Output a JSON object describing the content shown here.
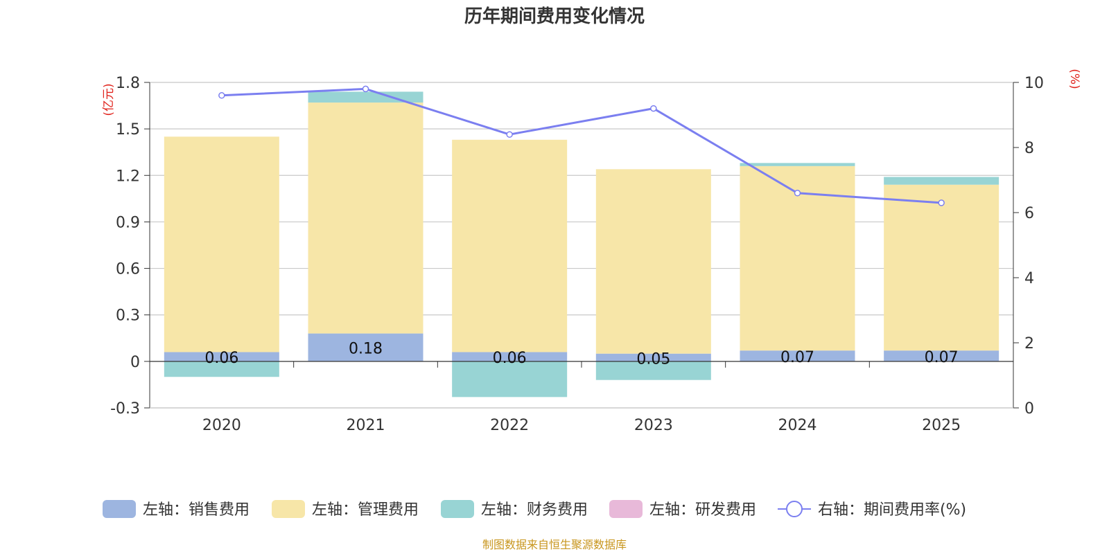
{
  "chart_data": {
    "type": "bar",
    "stacked": true,
    "title": "历年期间费用变化情况",
    "categories": [
      "2020",
      "2021",
      "2022",
      "2023",
      "2024",
      "2025"
    ],
    "left_axis": {
      "unit_label": "(亿元)",
      "ylim": [
        -0.3,
        1.8
      ],
      "ticks": [
        1.8,
        1.5,
        1.2,
        0.9,
        0.6,
        0.3,
        0,
        -0.3
      ],
      "tick_labels": [
        "1.8",
        "1.5",
        "1.2",
        "0.9",
        "0.6",
        "0.3",
        "0",
        "-0.3"
      ]
    },
    "right_axis": {
      "unit_label": "(%)",
      "ylim": [
        0,
        10
      ],
      "ticks": [
        10,
        8,
        6,
        4,
        2,
        0
      ],
      "tick_labels": [
        "10",
        "8",
        "6",
        "4",
        "2",
        "0"
      ]
    },
    "series": [
      {
        "name": "左轴：销售费用",
        "axis": "left",
        "kind": "bar",
        "color": "#9db5e0",
        "values": [
          0.06,
          0.18,
          0.06,
          0.05,
          0.07,
          0.07
        ],
        "labels": [
          "0.06",
          "0.18",
          "0.06",
          "0.05",
          "0.07",
          "0.07"
        ]
      },
      {
        "name": "左轴：管理费用",
        "axis": "left",
        "kind": "bar",
        "color": "#f7e6a8",
        "values": [
          1.39,
          1.49,
          1.37,
          1.19,
          1.19,
          1.07
        ]
      },
      {
        "name": "左轴：财务费用",
        "axis": "left",
        "kind": "bar",
        "color": "#98d4d4",
        "values": [
          -0.1,
          0.07,
          -0.23,
          -0.12,
          0.02,
          0.05
        ]
      },
      {
        "name": "左轴：研发费用",
        "axis": "left",
        "kind": "bar",
        "color": "#e8b9d9",
        "values": [
          0,
          0,
          0,
          0,
          0,
          0
        ]
      },
      {
        "name": "右轴：期间费用率(%)",
        "axis": "right",
        "kind": "line",
        "color": "#7b7ff0",
        "values": [
          9.6,
          9.8,
          8.4,
          9.2,
          6.6,
          6.3
        ]
      }
    ],
    "legend_position": "bottom",
    "grid": true,
    "source_note": "制图数据来自恒生聚源数据库"
  }
}
